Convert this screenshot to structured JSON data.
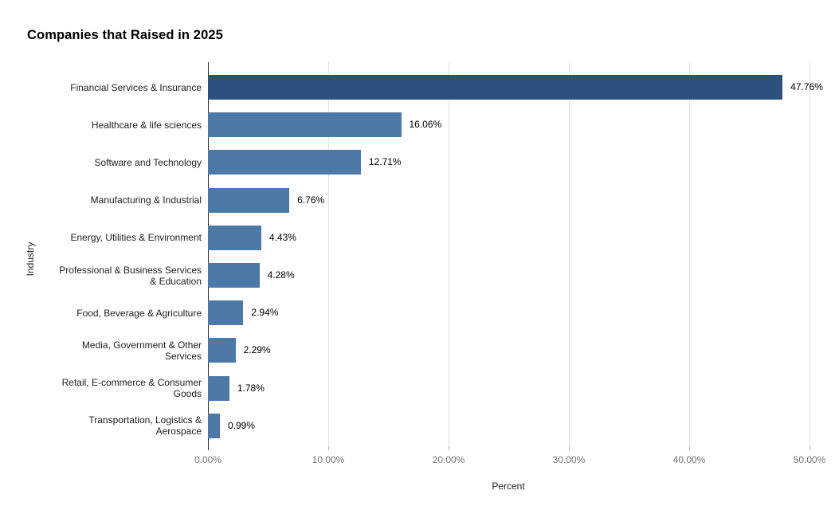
{
  "title": "Companies that Raised in 2025",
  "chart_data": {
    "type": "bar",
    "orientation": "horizontal",
    "title": "Companies that Raised in 2025",
    "xlabel": "Percent",
    "ylabel": "Industry",
    "xlim": [
      0,
      50
    ],
    "grid": true,
    "legend": "none",
    "x_tick_values": [
      0,
      10,
      20,
      30,
      40,
      50
    ],
    "x_tick_labels": [
      "0.00%",
      "10.00%",
      "20.00%",
      "30.00%",
      "40.00%",
      "50.00%"
    ],
    "colors": {
      "highlight": "#2d517e",
      "default": "#4d79a7"
    },
    "categories": [
      "Financial Services & Insurance",
      "Healthcare & life sciences",
      "Software and Technology",
      "Manufacturing & Industrial",
      "Energy, Utilities & Environment",
      "Professional & Business Services & Education",
      "Food, Beverage & Agriculture",
      "Media, Government & Other Services",
      "Retail, E-commerce & Consumer Goods",
      "Transportation, Logistics & Aerospace"
    ],
    "values": [
      47.76,
      16.06,
      12.71,
      6.76,
      4.43,
      4.28,
      2.94,
      2.29,
      1.78,
      0.99
    ],
    "bars": [
      {
        "label_lines": [
          "Financial Services & Insurance"
        ],
        "value": 47.76,
        "value_label": "47.76%",
        "color_role": "highlight"
      },
      {
        "label_lines": [
          "Healthcare & life sciences"
        ],
        "value": 16.06,
        "value_label": "16.06%",
        "color_role": "default"
      },
      {
        "label_lines": [
          "Software and Technology"
        ],
        "value": 12.71,
        "value_label": "12.71%",
        "color_role": "default"
      },
      {
        "label_lines": [
          "Manufacturing & Industrial"
        ],
        "value": 6.76,
        "value_label": "6.76%",
        "color_role": "default"
      },
      {
        "label_lines": [
          "Energy, Utilities & Environment"
        ],
        "value": 4.43,
        "value_label": "4.43%",
        "color_role": "default"
      },
      {
        "label_lines": [
          "Professional & Business Services",
          "& Education"
        ],
        "value": 4.28,
        "value_label": "4.28%",
        "color_role": "default"
      },
      {
        "label_lines": [
          "Food, Beverage & Agriculture"
        ],
        "value": 2.94,
        "value_label": "2.94%",
        "color_role": "default"
      },
      {
        "label_lines": [
          "Media, Government & Other",
          "Services"
        ],
        "value": 2.29,
        "value_label": "2.29%",
        "color_role": "default"
      },
      {
        "label_lines": [
          "Retail, E-commerce & Consumer",
          "Goods"
        ],
        "value": 1.78,
        "value_label": "1.78%",
        "color_role": "default"
      },
      {
        "label_lines": [
          "Transportation, Logistics &",
          "Aerospace"
        ],
        "value": 0.99,
        "value_label": "0.99%",
        "color_role": "default"
      }
    ]
  }
}
